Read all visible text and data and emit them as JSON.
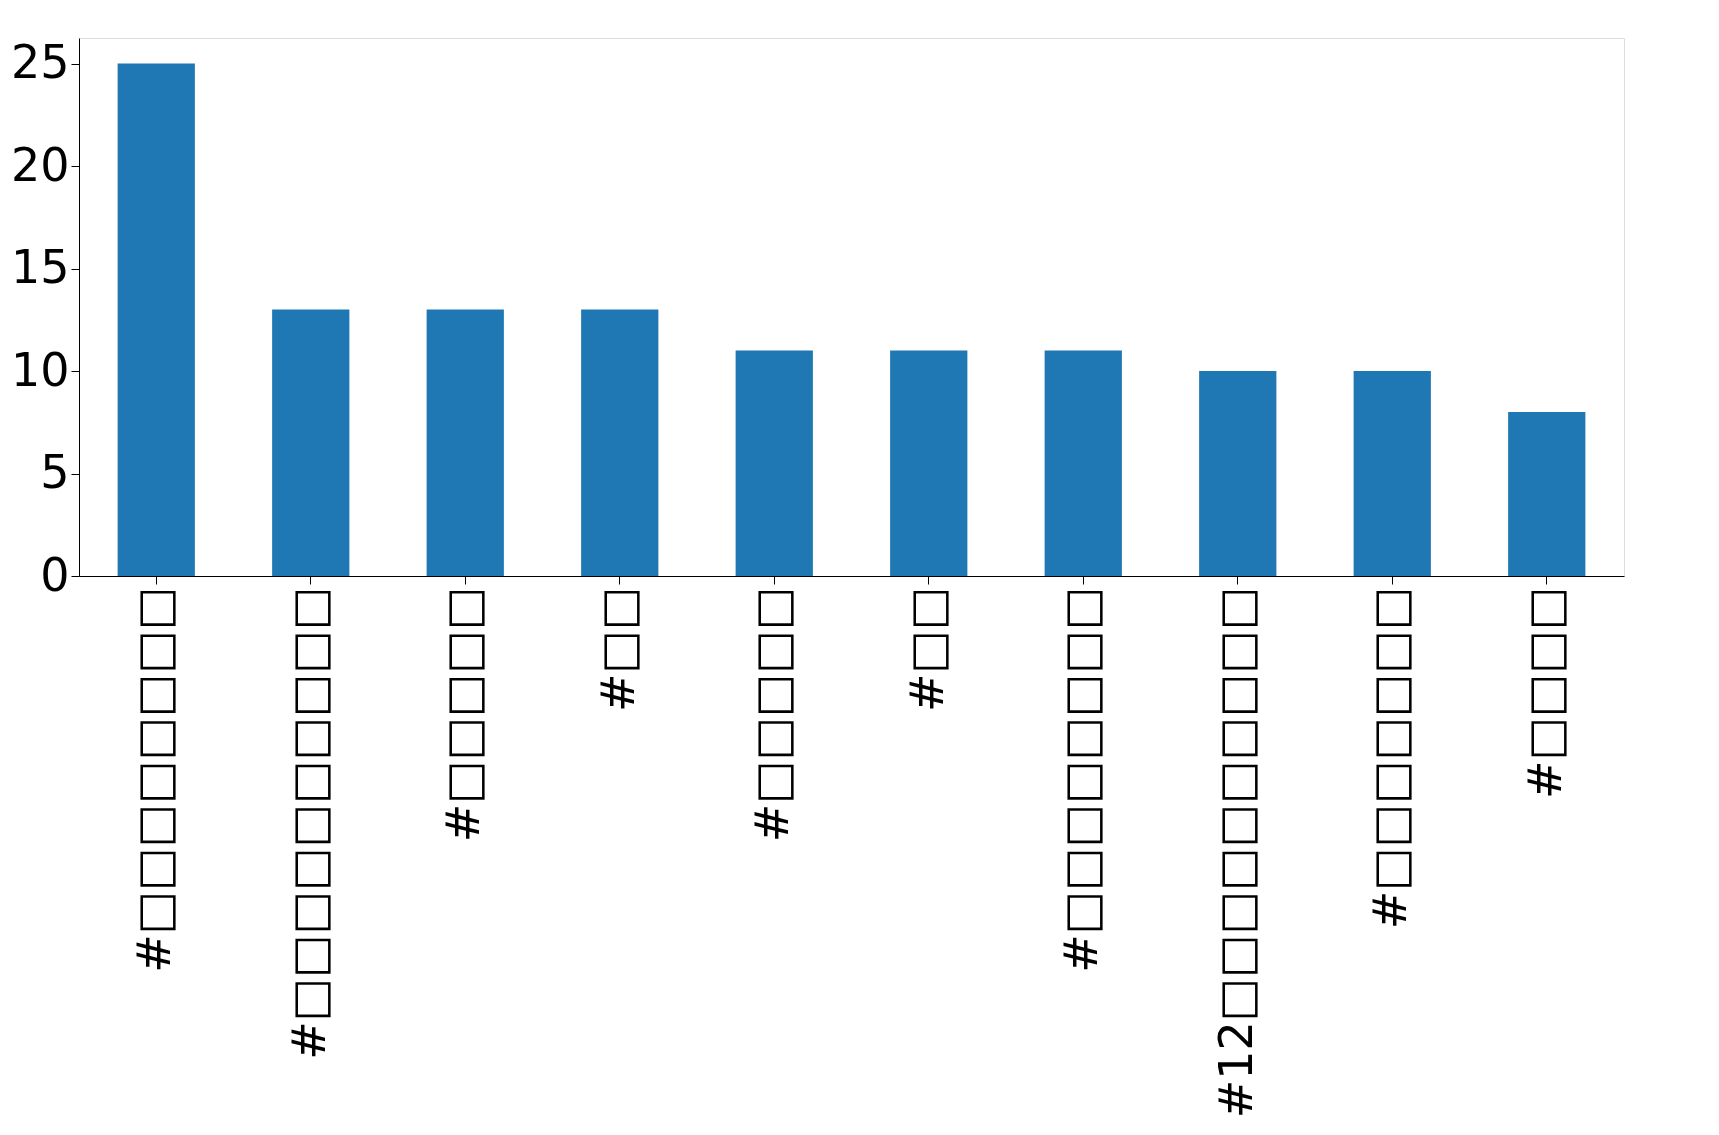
{
  "chart_data": {
    "type": "bar",
    "categories": [
      "#□□□□□□□□",
      "#□□□□□□□□□□",
      "#□□□□□",
      "#□□",
      "#□□□□□",
      "#□□",
      "#□□□□□□□□",
      "#12□□□□□□□□□□",
      "#□□□□□□□",
      "#□□□□"
    ],
    "values": [
      25,
      13,
      13,
      13,
      11,
      11,
      11,
      10,
      10,
      8
    ],
    "color": "#1f77b4",
    "ylim": [
      0,
      26.25
    ],
    "yticks": [
      0,
      5,
      10,
      15,
      20,
      25
    ],
    "grid": false
  }
}
